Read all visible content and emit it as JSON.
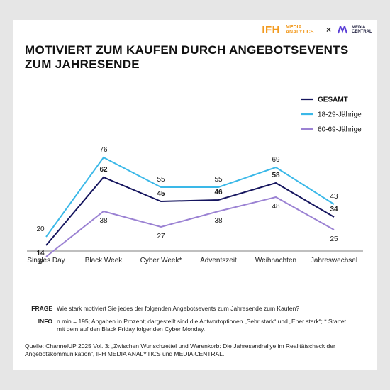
{
  "brand": {
    "ifh": "IFH",
    "media_analytics": "MEDIA ANALYTICS",
    "separator": "×",
    "media_central": "MEDIA CENTRAL"
  },
  "title": "MOTIVIERT ZUM KAUFEN DURCH ANGEBOTSEVENTS ZUM JAHRESENDE",
  "chart_data": {
    "type": "line",
    "title": "MOTIVIERT ZUM KAUFEN DURCH ANGEBOTSEVENTS ZUM JAHRESENDE",
    "categories": [
      "Singles Day",
      "Black Week",
      "Cyber Week*",
      "Adventszeit",
      "Weihnachten",
      "Jahreswechsel"
    ],
    "ylim": [
      0,
      100
    ],
    "grid": false,
    "legend_position": "top-right",
    "series": [
      {
        "name": "GESAMT",
        "values": [
          14,
          62,
          45,
          46,
          58,
          34
        ],
        "color": "#15155e",
        "bold": true
      },
      {
        "name": "18-29-Jährige",
        "values": [
          20,
          76,
          55,
          55,
          69,
          43
        ],
        "color": "#3ab8e8",
        "bold": false
      },
      {
        "name": "60-69-Jährige",
        "values": [
          6,
          38,
          27,
          38,
          48,
          25
        ],
        "color": "#9b82d3",
        "bold": false
      }
    ]
  },
  "notes": {
    "frage_key": "FRAGE",
    "frage_text": "Wie stark motiviert Sie jedes der folgenden Angebotsevents zum Jahresende zum Kaufen?",
    "info_key": "INFO",
    "info_text": "n min = 195; Angaben in Prozent; dargestellt sind die Antwortoptionen „Sehr stark“ und „Eher stark“; * Startet mit dem auf den Black Friday folgenden Cyber Monday."
  },
  "source": "Quelle: ChannelUP 2025 Vol. 3: „Zwischen Wunschzettel und Warenkorb: Die Jahresendrallye im Realitätscheck der Angebotskommunikation“, IFH MEDIA ANALYTICS und MEDIA CENTRAL."
}
